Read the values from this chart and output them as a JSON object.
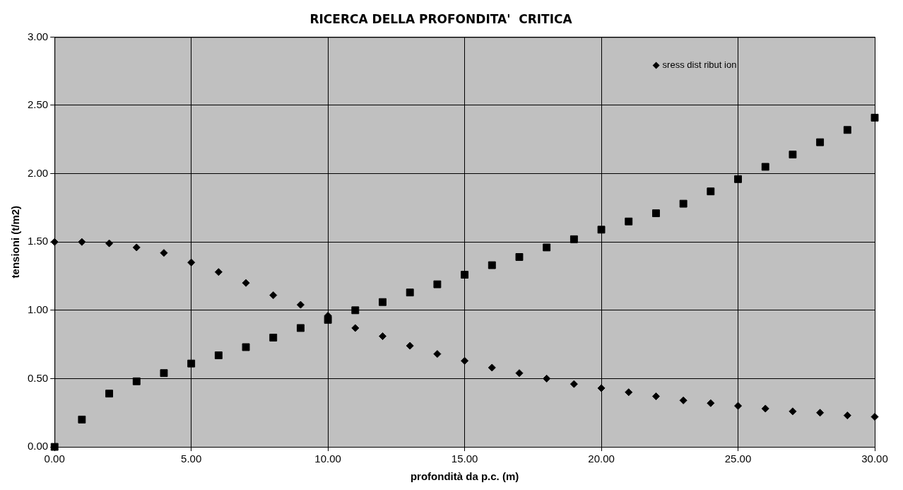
{
  "chart_data": {
    "type": "scatter",
    "title": "RICERCA DELLA PROFONDITA'  CRITICA",
    "xlabel": "profondità da p.c. (m)",
    "ylabel": "tensioni (t/m2)",
    "x": [
      0,
      1,
      2,
      3,
      4,
      5,
      6,
      7,
      8,
      9,
      10,
      11,
      12,
      13,
      14,
      15,
      16,
      17,
      18,
      19,
      20,
      21,
      22,
      23,
      24,
      25,
      26,
      27,
      28,
      29,
      30
    ],
    "series": [
      {
        "name": "sress dist ribut ion",
        "color": "#000000",
        "marker": "diamond",
        "values": [
          1.5,
          1.5,
          1.49,
          1.46,
          1.42,
          1.35,
          1.28,
          1.2,
          1.11,
          1.04,
          0.96,
          0.87,
          0.81,
          0.74,
          0.68,
          0.63,
          0.58,
          0.54,
          0.5,
          0.46,
          0.43,
          0.4,
          0.37,
          0.34,
          0.32,
          0.3,
          0.28,
          0.26,
          0.25,
          0.23,
          0.22
        ]
      },
      {
        "color": "#000000",
        "marker": "square",
        "values": [
          0,
          0.2,
          0.39,
          0.48,
          0.54,
          0.61,
          0.67,
          0.73,
          0.8,
          0.87,
          0.93,
          1.0,
          1.06,
          1.13,
          1.19,
          1.26,
          1.33,
          1.39,
          1.46,
          1.52,
          1.59,
          1.65,
          1.71,
          1.78,
          1.87,
          1.96,
          2.05,
          2.14,
          2.23,
          2.32,
          2.41
        ]
      }
    ],
    "xlim": [
      0,
      30
    ],
    "xticks": [
      {
        "value": 0,
        "label": "0.00"
      },
      {
        "value": 5,
        "label": "5.00"
      },
      {
        "value": 10,
        "label": "10.00"
      },
      {
        "value": 15,
        "label": "15.00"
      },
      {
        "value": 20,
        "label": "20.00"
      },
      {
        "value": 25,
        "label": "25.00"
      },
      {
        "value": 30,
        "label": "30.00"
      }
    ],
    "ylim": [
      0,
      3
    ],
    "yticks": [
      {
        "value": 0,
        "label": "0.00"
      },
      {
        "value": 0.5,
        "label": "0.50"
      },
      {
        "value": 1,
        "label": "1.00"
      },
      {
        "value": 1.5,
        "label": "1.50"
      },
      {
        "value": 2,
        "label": "2.00"
      },
      {
        "value": 2.5,
        "label": "2.50"
      },
      {
        "value": 3,
        "label": "3.00"
      }
    ],
    "grid": true,
    "legend": "top right"
  }
}
